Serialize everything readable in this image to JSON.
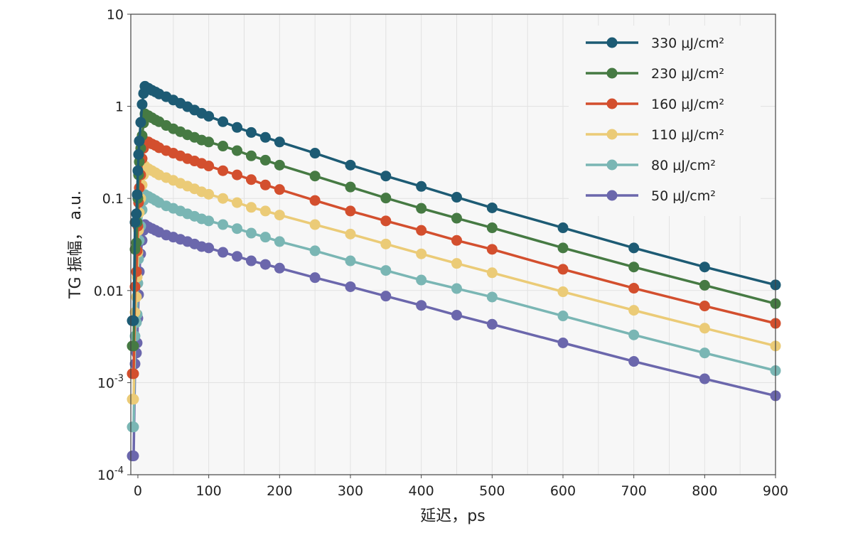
{
  "chart_data": {
    "type": "line",
    "xlabel": "延迟，ps",
    "ylabel": "TG 振幅， a.u.",
    "y_scale": "log",
    "xlim": [
      -10,
      900
    ],
    "ylim": [
      0.0001,
      10
    ],
    "x_ticks": [
      0,
      100,
      200,
      300,
      400,
      500,
      600,
      700,
      800,
      900
    ],
    "x_tick_labels": [
      "0",
      "100",
      "200",
      "300",
      "400",
      "500",
      "600",
      "700",
      "800",
      "900"
    ],
    "y_ticks": [
      0.0001,
      0.001,
      0.01,
      0.1,
      1,
      10
    ],
    "y_tick_labels": [
      {
        "base": "10",
        "exp": "-4"
      },
      {
        "base": "10",
        "exp": "-3"
      },
      {
        "base": "0.01",
        "exp": ""
      },
      {
        "base": "0.1",
        "exp": ""
      },
      {
        "base": "1",
        "exp": ""
      },
      {
        "base": "10",
        "exp": ""
      }
    ],
    "grid": true,
    "legend_position": "top-right",
    "x": [
      -8,
      -6,
      -4,
      -2,
      -1,
      0,
      1,
      2,
      4,
      6,
      8,
      10,
      15,
      20,
      25,
      30,
      40,
      50,
      60,
      70,
      80,
      90,
      100,
      120,
      140,
      160,
      180,
      200,
      250,
      300,
      350,
      400,
      450,
      500,
      600,
      700,
      800,
      900
    ],
    "series": [
      {
        "name": "330 μJ/cm²",
        "color": "#1d5b74",
        "values": [
          0.0047,
          0.0047,
          0.055,
          0.068,
          0.11,
          0.2,
          0.3,
          0.42,
          0.67,
          1.05,
          1.38,
          1.65,
          1.57,
          1.49,
          1.43,
          1.36,
          1.27,
          1.17,
          1.08,
          0.99,
          0.91,
          0.84,
          0.78,
          0.68,
          0.59,
          0.52,
          0.46,
          0.41,
          0.31,
          0.23,
          0.175,
          0.135,
          0.103,
          0.079,
          0.048,
          0.029,
          0.018,
          0.0115
        ]
      },
      {
        "name": "230 μJ/cm²",
        "color": "#467a43",
        "values": [
          0.0025,
          0.0025,
          0.028,
          0.033,
          0.055,
          0.1,
          0.18,
          0.25,
          0.35,
          0.48,
          0.66,
          0.83,
          0.79,
          0.75,
          0.71,
          0.68,
          0.62,
          0.57,
          0.53,
          0.49,
          0.46,
          0.43,
          0.41,
          0.37,
          0.33,
          0.29,
          0.26,
          0.23,
          0.175,
          0.133,
          0.101,
          0.078,
          0.061,
          0.048,
          0.029,
          0.018,
          0.0114,
          0.0072
        ]
      },
      {
        "name": "160 μJ/cm²",
        "color": "#d34f2e",
        "values": [
          0.00125,
          0.00125,
          0.011,
          0.016,
          0.027,
          0.05,
          0.09,
          0.13,
          0.18,
          0.27,
          0.35,
          0.42,
          0.41,
          0.39,
          0.375,
          0.355,
          0.33,
          0.31,
          0.29,
          0.27,
          0.255,
          0.24,
          0.225,
          0.2,
          0.18,
          0.16,
          0.14,
          0.125,
          0.095,
          0.073,
          0.057,
          0.045,
          0.035,
          0.028,
          0.017,
          0.0106,
          0.0068,
          0.0044
        ]
      },
      {
        "name": "110 μJ/cm²",
        "color": "#ebcb77",
        "values": [
          0.00066,
          0.00066,
          0.0058,
          0.0085,
          0.014,
          0.026,
          0.045,
          0.07,
          0.1,
          0.14,
          0.18,
          0.225,
          0.21,
          0.2,
          0.19,
          0.18,
          0.168,
          0.157,
          0.146,
          0.136,
          0.127,
          0.118,
          0.111,
          0.1,
          0.09,
          0.08,
          0.073,
          0.066,
          0.052,
          0.041,
          0.032,
          0.025,
          0.0197,
          0.0156,
          0.0097,
          0.0061,
          0.0039,
          0.0025
        ]
      },
      {
        "name": "80 μJ/cm²",
        "color": "#7ab6b4",
        "values": [
          0.00033,
          0.00033,
          0.0032,
          0.0045,
          0.0055,
          0.012,
          0.022,
          0.035,
          0.05,
          0.075,
          0.095,
          0.11,
          0.105,
          0.1,
          0.095,
          0.09,
          0.083,
          0.078,
          0.073,
          0.068,
          0.064,
          0.06,
          0.057,
          0.052,
          0.047,
          0.042,
          0.038,
          0.034,
          0.027,
          0.021,
          0.0165,
          0.013,
          0.0105,
          0.0085,
          0.0053,
          0.0033,
          0.0021,
          0.00135
        ]
      },
      {
        "name": "50 μJ/cm²",
        "color": "#6b67ac",
        "values": [
          0.00016,
          0.00016,
          0.0016,
          0.0021,
          0.0027,
          0.005,
          0.009,
          0.016,
          0.025,
          0.035,
          0.045,
          0.052,
          0.049,
          0.047,
          0.045,
          0.043,
          0.04,
          0.038,
          0.036,
          0.034,
          0.032,
          0.03,
          0.029,
          0.026,
          0.0235,
          0.021,
          0.0192,
          0.0175,
          0.0138,
          0.011,
          0.0087,
          0.0069,
          0.0054,
          0.0043,
          0.0027,
          0.0017,
          0.0011,
          0.00072
        ]
      }
    ]
  }
}
